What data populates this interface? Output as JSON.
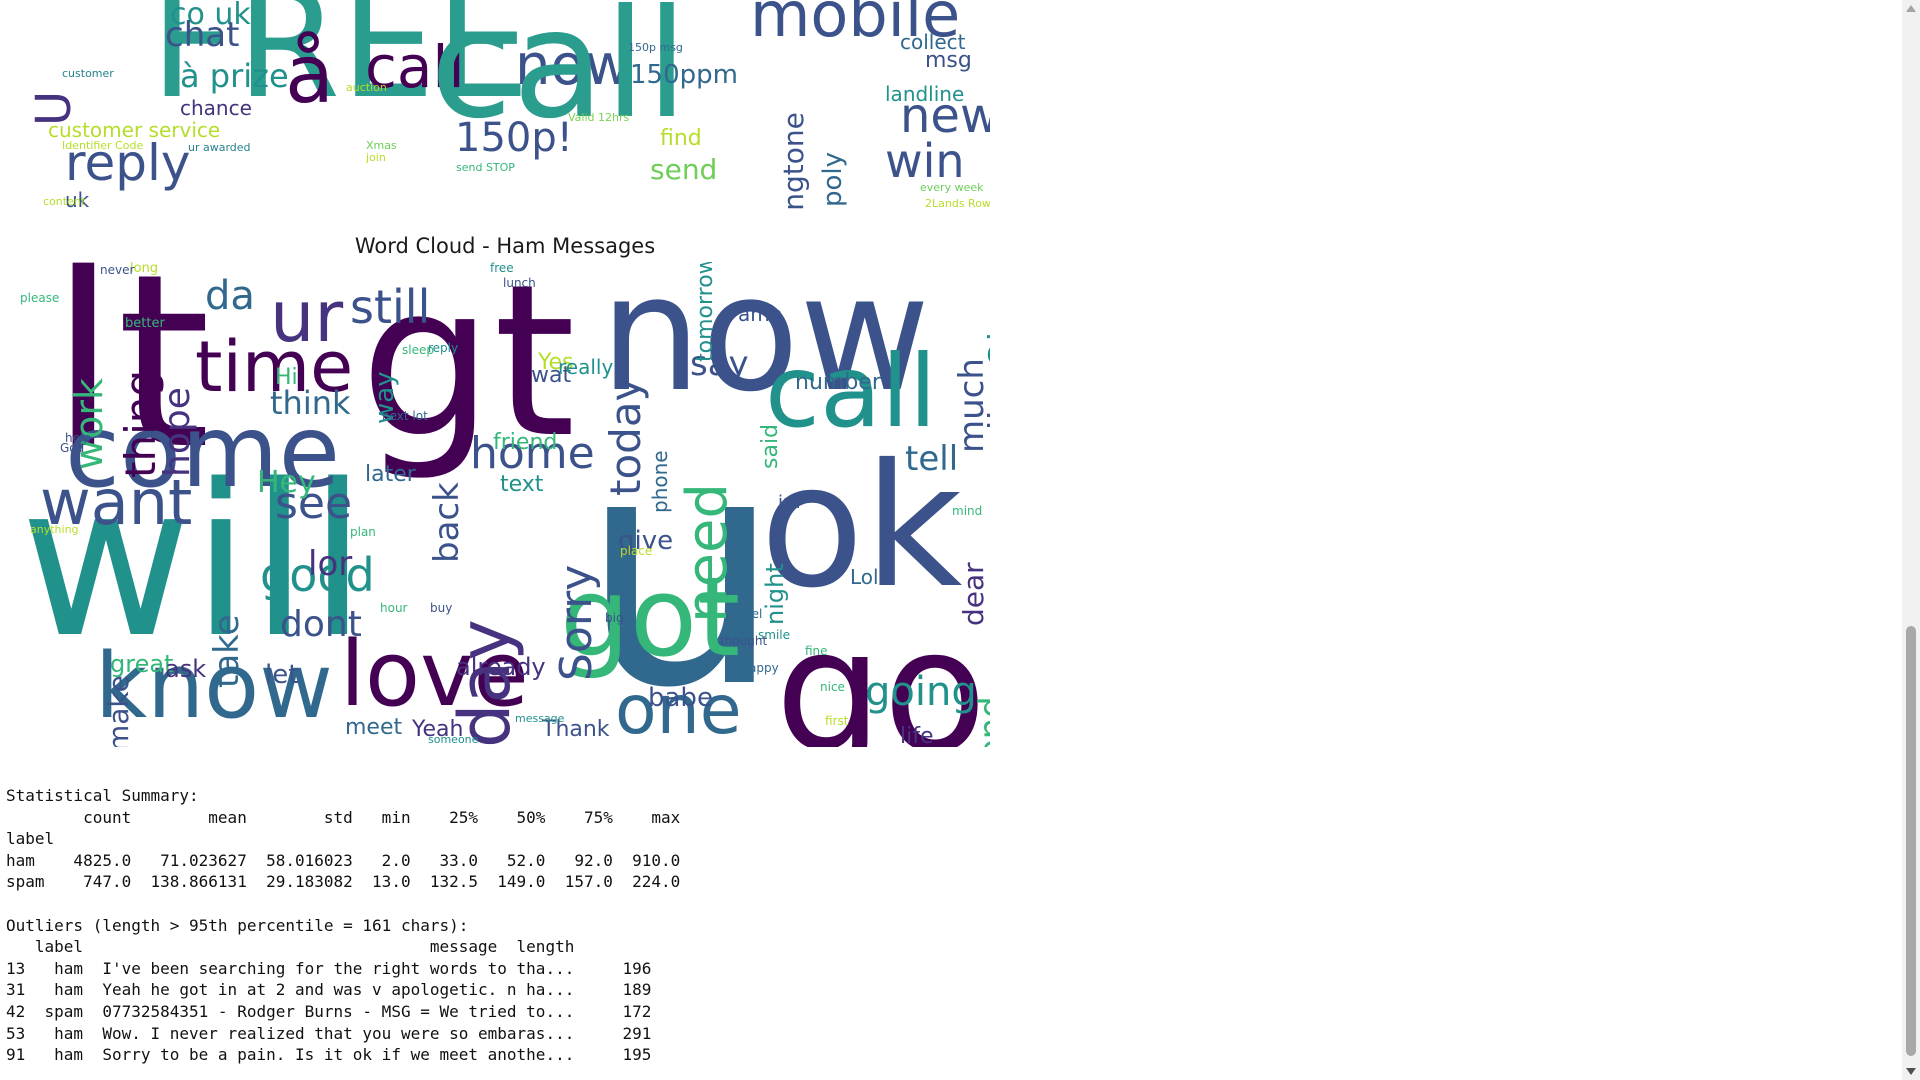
{
  "spam_cloud": {
    "words": [
      {
        "t": "FREE",
        "c": "#2a9d8f",
        "s": 150,
        "r": 0
      },
      {
        "t": "mobile",
        "c": "#3b528b",
        "s": 62,
        "r": 0
      },
      {
        "t": "U",
        "c": "#46327e",
        "s": 48,
        "r": -90
      },
      {
        "t": "co uk",
        "c": "#21918c",
        "s": 30,
        "r": 0
      },
      {
        "t": "chat",
        "c": "#3b528b",
        "s": 34,
        "r": 0
      },
      {
        "t": "call",
        "c": "#440154",
        "s": 58,
        "r": 0
      },
      {
        "t": "now",
        "c": "#3b528b",
        "s": 56,
        "r": 0
      },
      {
        "t": "å",
        "c": "#440154",
        "s": 80,
        "r": 0
      },
      {
        "t": "call",
        "c": "#2a9d8f",
        "s": 150,
        "r": 0
      },
      {
        "t": "à prize",
        "c": "#21918c",
        "s": 32,
        "r": 0
      },
      {
        "t": "150ppm",
        "c": "#31688e",
        "s": 26,
        "r": 0
      },
      {
        "t": "collect",
        "c": "#31688e",
        "s": 20,
        "r": 0
      },
      {
        "t": "msg",
        "c": "#3b528b",
        "s": 22,
        "r": 0
      },
      {
        "t": "landline",
        "c": "#21918c",
        "s": 20,
        "r": 0
      },
      {
        "t": "new",
        "c": "#3b528b",
        "s": 48,
        "r": 0
      },
      {
        "t": "win",
        "c": "#3b528b",
        "s": 46,
        "r": 0
      },
      {
        "t": "chance",
        "c": "#46327e",
        "s": 20,
        "r": 0
      },
      {
        "t": "customer service",
        "c": "#b5de2b",
        "s": 20,
        "r": 0
      },
      {
        "t": "reply",
        "c": "#3b528b",
        "s": 50,
        "r": 0
      },
      {
        "t": "150p!",
        "c": "#3b528b",
        "s": 40,
        "r": 0
      },
      {
        "t": "find",
        "c": "#b5de2b",
        "s": 22,
        "r": 0
      },
      {
        "t": "send",
        "c": "#6ece58",
        "s": 28,
        "r": 0
      },
      {
        "t": "ringtone",
        "c": "#3b528b",
        "s": 28,
        "r": -90
      },
      {
        "t": "poly",
        "c": "#31688e",
        "s": 26,
        "r": -90
      },
      {
        "t": "uk",
        "c": "#3b528b",
        "s": 20,
        "r": 0
      },
      {
        "t": "Valid 12hrs",
        "c": "#7ad151",
        "s": 11,
        "r": 0
      },
      {
        "t": "send STOP",
        "c": "#35b779",
        "s": 11,
        "r": 0
      },
      {
        "t": "ur awarded",
        "c": "#26828e",
        "s": 11,
        "r": 0
      },
      {
        "t": "every week",
        "c": "#6ece58",
        "s": 11,
        "r": 0
      },
      {
        "t": "2Lands Row",
        "c": "#b5de2b",
        "s": 11,
        "r": 0
      },
      {
        "t": "auction",
        "c": "#b5de2b",
        "s": 11,
        "r": 0
      },
      {
        "t": "customer",
        "c": "#26828e",
        "s": 11,
        "r": 0
      },
      {
        "t": "Xmas",
        "c": "#6ece58",
        "s": 11,
        "r": 0
      },
      {
        "t": "join",
        "c": "#b5de2b",
        "s": 11,
        "r": 0
      },
      {
        "t": "150p msg",
        "c": "#31688e",
        "s": 11,
        "r": 0
      },
      {
        "t": "content",
        "c": "#b5de2b",
        "s": 11,
        "r": 0
      },
      {
        "t": "Identifier Code",
        "c": "#b5de2b",
        "s": 11,
        "r": 0
      }
    ]
  },
  "ham_cloud": {
    "title": "Word Cloud - Ham Messages",
    "words": [
      {
        "t": "lt",
        "c": "#440154",
        "s": 240,
        "r": 0
      },
      {
        "t": "gt",
        "c": "#440154",
        "s": 210,
        "r": 0
      },
      {
        "t": "now",
        "c": "#3b528b",
        "s": 160,
        "r": 0
      },
      {
        "t": "u",
        "c": "#31688e",
        "s": 320,
        "r": 0
      },
      {
        "t": "ok",
        "c": "#3b528b",
        "s": 170,
        "r": 0
      },
      {
        "t": "will",
        "c": "#21918c",
        "s": 210,
        "r": 0
      },
      {
        "t": "come",
        "c": "#3b528b",
        "s": 100,
        "r": 0
      },
      {
        "t": "time",
        "c": "#440154",
        "s": 70,
        "r": 0
      },
      {
        "t": "ur",
        "c": "#46327e",
        "s": 70,
        "r": 0
      },
      {
        "t": "da",
        "c": "#31688e",
        "s": 40,
        "r": 0
      },
      {
        "t": "still",
        "c": "#3b528b",
        "s": 46,
        "r": 0
      },
      {
        "t": "call",
        "c": "#21918c",
        "s": 100,
        "r": 0
      },
      {
        "t": "want",
        "c": "#3b528b",
        "s": 62,
        "r": 0
      },
      {
        "t": "know",
        "c": "#31688e",
        "s": 90,
        "r": 0
      },
      {
        "t": "love",
        "c": "#440154",
        "s": 90,
        "r": 0
      },
      {
        "t": "got",
        "c": "#35b779",
        "s": 110,
        "r": 0
      },
      {
        "t": "go",
        "c": "#440154",
        "s": 170,
        "r": 0
      },
      {
        "t": "one",
        "c": "#31688e",
        "s": 68,
        "r": 0
      },
      {
        "t": "day",
        "c": "#46327e",
        "s": 70,
        "r": -90
      },
      {
        "t": "home",
        "c": "#3b528b",
        "s": 44,
        "r": 0
      },
      {
        "t": "need",
        "c": "#35b779",
        "s": 56,
        "r": -90
      },
      {
        "t": "see",
        "c": "#3b528b",
        "s": 44,
        "r": 0
      },
      {
        "t": "good",
        "c": "#21918c",
        "s": 46,
        "r": 0
      },
      {
        "t": "dont",
        "c": "#3b528b",
        "s": 36,
        "r": 0
      },
      {
        "t": "think",
        "c": "#31688e",
        "s": 32,
        "r": 0
      },
      {
        "t": "today",
        "c": "#3b528b",
        "s": 42,
        "r": -90
      },
      {
        "t": "thing",
        "c": "#440154",
        "s": 42,
        "r": -90
      },
      {
        "t": "work",
        "c": "#35b779",
        "s": 38,
        "r": -90
      },
      {
        "t": "hope",
        "c": "#46327e",
        "s": 36,
        "r": -90
      },
      {
        "t": "much",
        "c": "#3b528b",
        "s": 34,
        "r": -90
      },
      {
        "t": "well",
        "c": "#3b528b",
        "s": 36,
        "r": -90
      },
      {
        "t": "Oh",
        "c": "#21918c",
        "s": 34,
        "r": -90
      },
      {
        "t": "say",
        "c": "#3b528b",
        "s": 34,
        "r": 0
      },
      {
        "t": "tell",
        "c": "#31688e",
        "s": 34,
        "r": 0
      },
      {
        "t": "Sorry",
        "c": "#3b528b",
        "s": 44,
        "r": -90
      },
      {
        "t": "back",
        "c": "#3b528b",
        "s": 34,
        "r": -90
      },
      {
        "t": "take",
        "c": "#31688e",
        "s": 34,
        "r": -90
      },
      {
        "t": "lor",
        "c": "#46327e",
        "s": 34,
        "r": 0
      },
      {
        "t": "give",
        "c": "#3b528b",
        "s": 26,
        "r": 0
      },
      {
        "t": "already",
        "c": "#46327e",
        "s": 24,
        "r": 0
      },
      {
        "t": "great",
        "c": "#35b779",
        "s": 24,
        "r": 0
      },
      {
        "t": "ask",
        "c": "#46327e",
        "s": 24,
        "r": 0
      },
      {
        "t": "let",
        "c": "#3b528b",
        "s": 26,
        "r": 0
      },
      {
        "t": "make",
        "c": "#3b528b",
        "s": 28,
        "r": -90
      },
      {
        "t": "meet",
        "c": "#31688e",
        "s": 22,
        "r": 0
      },
      {
        "t": "Yeah",
        "c": "#46327e",
        "s": 22,
        "r": 0
      },
      {
        "t": "Thank",
        "c": "#3b528b",
        "s": 22,
        "r": 0
      },
      {
        "t": "babe",
        "c": "#3b528b",
        "s": 26,
        "r": 0
      },
      {
        "t": "going",
        "c": "#21918c",
        "s": 40,
        "r": 0
      },
      {
        "t": "send",
        "c": "#35b779",
        "s": 34,
        "r": -90
      },
      {
        "t": "life",
        "c": "#46327e",
        "s": 22,
        "r": 0
      },
      {
        "t": "Hey",
        "c": "#35b779",
        "s": 30,
        "r": 0
      },
      {
        "t": "later",
        "c": "#31688e",
        "s": 22,
        "r": 0
      },
      {
        "t": "friend",
        "c": "#35b779",
        "s": 22,
        "r": 0
      },
      {
        "t": "text",
        "c": "#21918c",
        "s": 22,
        "r": 0
      },
      {
        "t": "number",
        "c": "#31688e",
        "s": 22,
        "r": 0
      },
      {
        "t": "night",
        "c": "#21918c",
        "s": 24,
        "r": -90
      },
      {
        "t": "Yes",
        "c": "#b5de2b",
        "s": 22,
        "r": 0
      },
      {
        "t": "wat",
        "c": "#3b528b",
        "s": 22,
        "r": 0
      },
      {
        "t": "way",
        "c": "#21918c",
        "s": 26,
        "r": -90
      },
      {
        "t": "really",
        "c": "#21918c",
        "s": 20,
        "r": 0
      },
      {
        "t": "Hi",
        "c": "#35b779",
        "s": 22,
        "r": 0
      },
      {
        "t": "amp",
        "c": "#3b528b",
        "s": 20,
        "r": 0
      },
      {
        "t": "Lol",
        "c": "#31688e",
        "s": 20,
        "r": 0
      },
      {
        "t": "dear",
        "c": "#46327e",
        "s": 28,
        "r": -90
      },
      {
        "t": "phone",
        "c": "#31688e",
        "s": 20,
        "r": -90
      },
      {
        "t": "tomorrow",
        "c": "#21918c",
        "s": 22,
        "r": -90
      },
      {
        "t": "said",
        "c": "#35b779",
        "s": 22,
        "r": -90
      },
      {
        "t": "im",
        "c": "#3b528b",
        "s": 18,
        "r": 0
      },
      {
        "t": "better",
        "c": "#35b779",
        "s": 13,
        "r": 0
      },
      {
        "t": "long",
        "c": "#b5de2b",
        "s": 13,
        "r": 0
      },
      {
        "t": "never",
        "c": "#3b528b",
        "s": 12,
        "r": 0
      },
      {
        "t": "please",
        "c": "#35b779",
        "s": 12,
        "r": 0
      },
      {
        "t": "free",
        "c": "#21918c",
        "s": 12,
        "r": 0
      },
      {
        "t": "lunch",
        "c": "#3b528b",
        "s": 12,
        "r": 0
      },
      {
        "t": "next lot",
        "c": "#31688e",
        "s": 12,
        "r": 0
      },
      {
        "t": "sleep",
        "c": "#35b779",
        "s": 12,
        "r": 0
      },
      {
        "t": "place",
        "c": "#b5de2b",
        "s": 12,
        "r": 0
      },
      {
        "t": "plan",
        "c": "#35b779",
        "s": 12,
        "r": 0
      },
      {
        "t": "hour",
        "c": "#35b779",
        "s": 12,
        "r": 0
      },
      {
        "t": "buy",
        "c": "#3b528b",
        "s": 12,
        "r": 0
      },
      {
        "t": "big",
        "c": "#3b528b",
        "s": 12,
        "r": 0
      },
      {
        "t": "feel",
        "c": "#31688e",
        "s": 12,
        "r": 0
      },
      {
        "t": "smile",
        "c": "#21918c",
        "s": 12,
        "r": 0
      },
      {
        "t": "fine",
        "c": "#35b779",
        "s": 12,
        "r": 0
      },
      {
        "t": "nice",
        "c": "#35b779",
        "s": 12,
        "r": 0
      },
      {
        "t": "first",
        "c": "#b5de2b",
        "s": 12,
        "r": 0
      },
      {
        "t": "Happy",
        "c": "#31688e",
        "s": 12,
        "r": 0
      },
      {
        "t": "thought",
        "c": "#3b528b",
        "s": 12,
        "r": 0
      },
      {
        "t": "mind",
        "c": "#35b779",
        "s": 12,
        "r": 0
      },
      {
        "t": "reply",
        "c": "#21918c",
        "s": 12,
        "r": 0
      },
      {
        "t": "God",
        "c": "#3b528b",
        "s": 12,
        "r": 0
      },
      {
        "t": "help",
        "c": "#3b528b",
        "s": 12,
        "r": 0
      },
      {
        "t": "anything",
        "c": "#b5de2b",
        "s": 11,
        "r": 0
      },
      {
        "t": "someone",
        "c": "#21918c",
        "s": 11,
        "r": 0
      },
      {
        "t": "message",
        "c": "#21918c",
        "s": 11,
        "r": 0
      }
    ]
  },
  "stats": {
    "lines": [
      "Statistical Summary:",
      "        count        mean        std   min    25%    50%    75%    max",
      "label",
      "ham    4825.0   71.023627  58.016023   2.0   33.0   52.0   92.0  910.0",
      "spam    747.0  138.866131  29.183082  13.0  132.5  149.0  157.0  224.0",
      "",
      "Outliers (length > 95th percentile = 161 chars):",
      "   label                                    message  length",
      "13   ham  I've been searching for the right words to tha...     196",
      "31   ham  Yeah he got in at 2 and was v apologetic. n ha...     189",
      "42  spam  07732584351 - Rodger Burns - MSG = We tried to...     172",
      "53   ham  Wow. I never realized that you were so embaras...     291",
      "91   ham  Sorry to be a pain. Is it ok if we meet anothe...     195"
    ]
  }
}
